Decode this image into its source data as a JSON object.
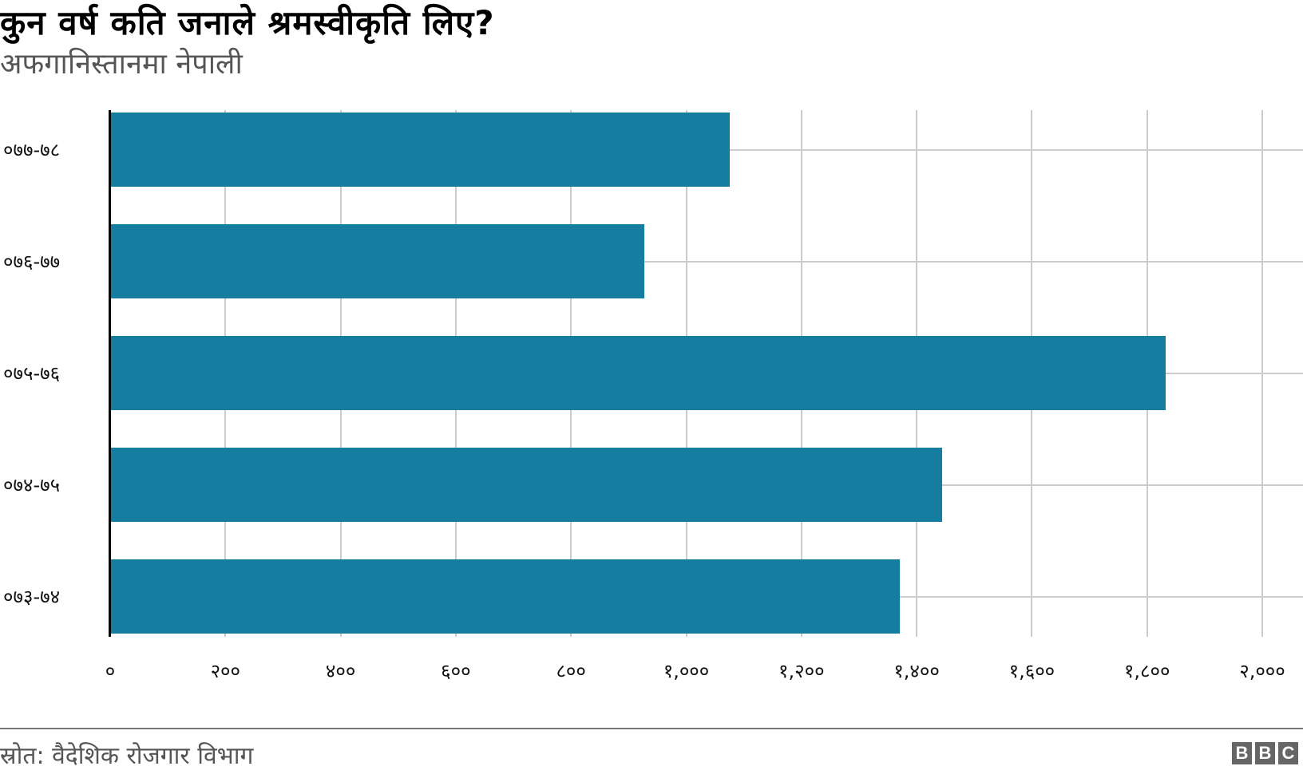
{
  "header": {
    "title": "कुन वर्ष कति जनाले श्रमस्वीकृति लिए?",
    "subtitle": "अफगानिस्तानमा नेपाली"
  },
  "footer": {
    "source": "स्रोत: वैदेशिक रोजगार विभाग",
    "logo_letters": [
      "B",
      "B",
      "C"
    ]
  },
  "colors": {
    "bar": "#157ea0",
    "grid": "#cccccc",
    "axis": "#000000"
  },
  "chart_data": {
    "type": "bar",
    "orientation": "horizontal",
    "title": "कुन वर्ष कति जनाले श्रमस्वीकृति लिए?",
    "subtitle": "अफगानिस्तानमा नेपाली",
    "categories": [
      "०७७-७८",
      "०७६-७७",
      "०७५-७६",
      "०७४-७५",
      "०७३-७४"
    ],
    "values": [
      1074,
      926,
      1831,
      1443,
      1369
    ],
    "xlabel": "",
    "ylabel": "",
    "xlim": [
      0,
      2000
    ],
    "x_ticks": [
      0,
      200,
      400,
      600,
      800,
      1000,
      1200,
      1400,
      1600,
      1800,
      2000
    ],
    "x_tick_labels": [
      "०",
      "२००",
      "४००",
      "६००",
      "८००",
      "१,०००",
      "१,२००",
      "१,४००",
      "१,६००",
      "१,८००",
      "२,०००"
    ],
    "grid": true,
    "legend": null,
    "source": "स्रोत: वैदेशिक रोजगार विभाग"
  }
}
